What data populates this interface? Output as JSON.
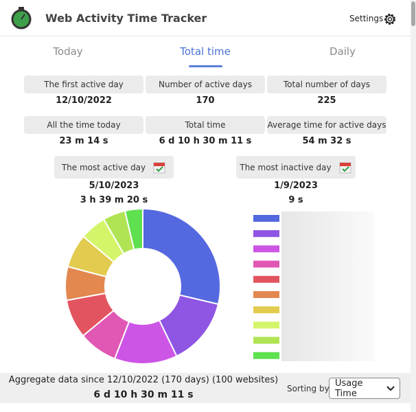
{
  "header": {
    "title": "Web Activity Time Tracker",
    "settings": "Settings"
  },
  "tabs": {
    "items": [
      "Today",
      "Total time",
      "Daily"
    ],
    "active": 1
  },
  "stats": [
    {
      "label": "The first active day",
      "value": "12/10/2022"
    },
    {
      "label": "Number of active days",
      "value": 170
    },
    {
      "label": "Total number of days",
      "value": 225
    },
    {
      "label": "All the time today",
      "value": "23 m 14 s"
    },
    {
      "label": "Total time",
      "value": "6 d 10 h 30 m 11 s"
    },
    {
      "label": "Average time for active days",
      "value": "54 m 32 s"
    }
  ],
  "most_active": {
    "label": "The most active day",
    "date": "5/10/2023",
    "time": "3 h 39 m 20 s"
  },
  "most_inactive": {
    "label": "The most inactive day",
    "date": "1/9/2023",
    "time": "9 s"
  },
  "chart_data": {
    "type": "pie",
    "donut": true,
    "values": [
      28.7,
      14.1,
      13.1,
      8.1,
      8.1,
      7,
      7,
      5.5,
      4.7,
      3.7
    ],
    "colors": [
      "#5468df",
      "#8f55e3",
      "#cd55e6",
      "#e057b4",
      "#e2545f",
      "#e3884f",
      "#e2cb4e",
      "#d4f56a",
      "#b0e454",
      "#5fe04f"
    ]
  },
  "footer": {
    "summary": "Aggregate data since 12/10/2022 (170 days) (100 websites)",
    "total": "6 d 10 h 30 m 11 s",
    "sorting_label": "Sorting by",
    "sorting_value": "Usage Time"
  }
}
